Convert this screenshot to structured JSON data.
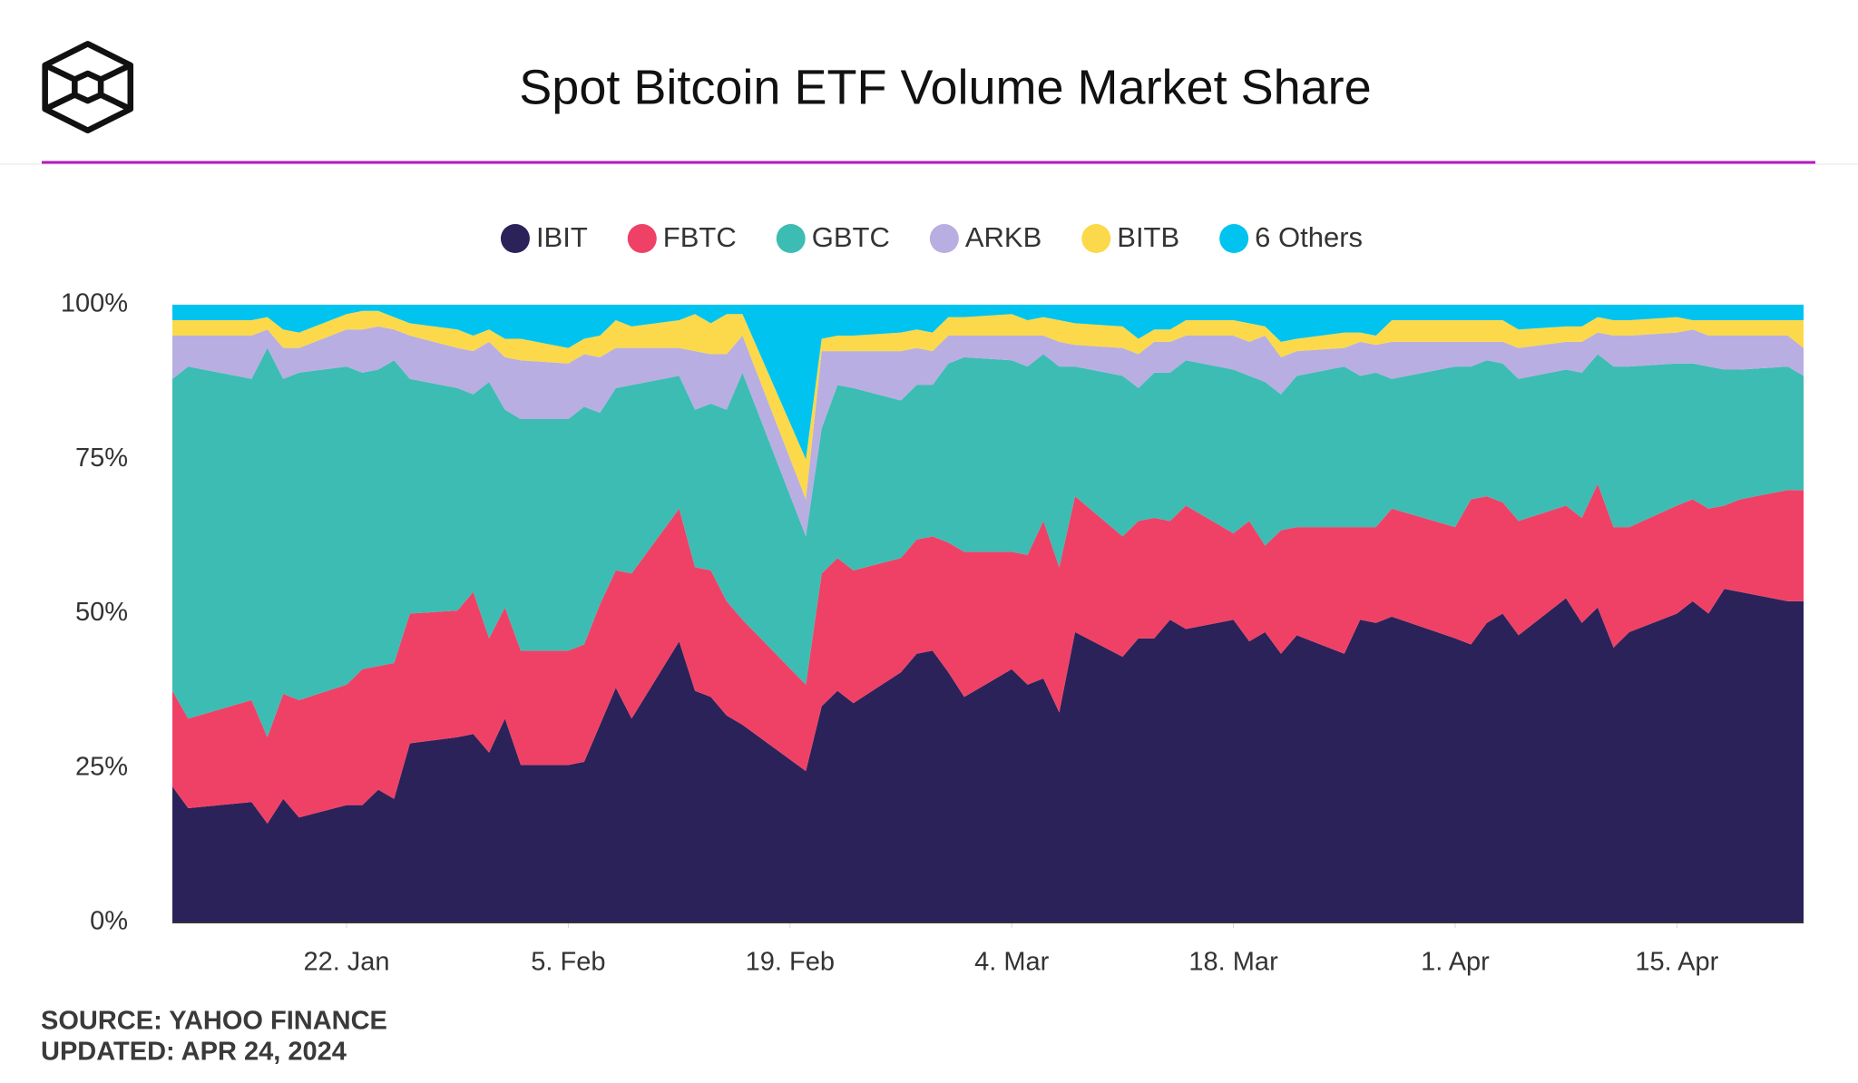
{
  "chart_data": {
    "type": "stacked-area",
    "title": "Spot Bitcoin ETF Volume Market Share",
    "source": "SOURCE: YAHOO FINANCE",
    "updated": "UPDATED: APR 24, 2024",
    "x": [
      "01-11",
      "01-12",
      "01-16",
      "01-17",
      "01-18",
      "01-19",
      "01-22",
      "01-23",
      "01-24",
      "01-25",
      "01-26",
      "01-29",
      "01-30",
      "01-31",
      "02-01",
      "02-02",
      "02-05",
      "02-06",
      "02-07",
      "02-08",
      "02-09",
      "02-12",
      "02-13",
      "02-14",
      "02-15",
      "02-16",
      "02-20",
      "02-21",
      "02-22",
      "02-23",
      "02-26",
      "02-27",
      "02-28",
      "02-29",
      "03-01",
      "03-04",
      "03-05",
      "03-06",
      "03-07",
      "03-08",
      "03-11",
      "03-12",
      "03-13",
      "03-14",
      "03-15",
      "03-18",
      "03-19",
      "03-20",
      "03-21",
      "03-22",
      "03-25",
      "03-26",
      "03-27",
      "03-28",
      "04-01",
      "04-02",
      "04-03",
      "04-04",
      "04-05",
      "04-08",
      "04-09",
      "04-10",
      "04-11",
      "04-12",
      "04-15",
      "04-16",
      "04-17",
      "04-18",
      "04-19",
      "04-22",
      "04-23"
    ],
    "xlim": [
      "01-11",
      "04-23"
    ],
    "xticks": [
      {
        "value": "01-22",
        "label": "22. Jan"
      },
      {
        "value": "02-05",
        "label": "5. Feb"
      },
      {
        "value": "02-19",
        "label": "19. Feb"
      },
      {
        "value": "03-04",
        "label": "4. Mar"
      },
      {
        "value": "03-18",
        "label": "18. Mar"
      },
      {
        "value": "04-01",
        "label": "1. Apr"
      },
      {
        "value": "04-15",
        "label": "15. Apr"
      }
    ],
    "ylim": [
      0,
      100
    ],
    "yticks": [
      {
        "value": 0,
        "label": "0%"
      },
      {
        "value": 25,
        "label": "25%"
      },
      {
        "value": 50,
        "label": "50%"
      },
      {
        "value": 75,
        "label": "75%"
      },
      {
        "value": 100,
        "label": "100%"
      }
    ],
    "stacked": true,
    "legend": "top",
    "series": [
      {
        "name": "IBIT",
        "color": "#2b2259",
        "values": [
          22,
          18.5,
          19.5,
          16,
          20,
          17,
          19,
          19,
          21.5,
          20,
          29,
          30,
          30.5,
          27.5,
          33,
          25.5,
          25.5,
          26,
          32,
          38,
          33,
          45.5,
          37.5,
          36.5,
          33.5,
          32,
          24.5,
          35,
          37.5,
          35.5,
          40.5,
          43.5,
          44,
          40.5,
          36.5,
          41,
          38.5,
          39.5,
          34,
          47,
          43,
          46,
          46,
          49,
          47.5,
          49,
          45.5,
          47,
          43.5,
          46.5,
          43.5,
          49,
          48.5,
          49.5,
          46,
          45,
          48.5,
          50,
          46.5,
          52.5,
          48.5,
          51,
          44.5,
          47,
          50,
          52,
          50,
          54,
          53.5,
          52,
          52
        ]
      },
      {
        "name": "FBTC",
        "color": "#ef4166",
        "values": [
          15.5,
          14.5,
          16.5,
          14,
          17,
          19,
          19.5,
          22,
          20,
          22,
          21,
          20.5,
          23,
          18.5,
          18,
          18.5,
          18.5,
          19,
          19.5,
          19,
          23.5,
          21.5,
          20,
          20.5,
          18.5,
          17,
          14,
          21.5,
          21.5,
          21.5,
          18.5,
          18.5,
          18.5,
          21,
          23.5,
          19,
          21,
          25.5,
          23.5,
          22,
          19.5,
          19,
          19.5,
          16,
          20,
          14,
          19.5,
          14,
          20,
          17.5,
          20.5,
          15,
          15.5,
          17.5,
          18,
          23.5,
          20.5,
          18,
          18.5,
          15,
          17,
          20,
          19.5,
          17,
          17.5,
          16.5,
          17,
          13.5,
          15,
          18,
          18
        ]
      },
      {
        "name": "GBTC",
        "color": "#3dbcb3",
        "values": [
          50.5,
          57,
          52,
          63,
          51,
          53,
          51.5,
          48,
          48,
          49,
          38,
          36,
          32,
          41.5,
          32,
          37.5,
          37.5,
          38.5,
          31,
          29.5,
          30.5,
          21.5,
          25.5,
          27,
          31,
          40,
          24,
          23.5,
          28,
          29.5,
          25.5,
          25,
          24.5,
          29,
          31.5,
          31,
          30.5,
          27,
          32.5,
          21,
          26,
          21.5,
          23.5,
          24,
          23.5,
          26.5,
          23.5,
          26.5,
          22,
          24.5,
          26,
          24.5,
          25,
          21,
          26,
          21.5,
          22,
          22.5,
          23,
          22,
          23.5,
          21,
          26,
          26,
          23,
          22,
          23,
          22,
          21,
          20,
          18.5
        ]
      },
      {
        "name": "ARKB",
        "color": "#b8aee1",
        "values": [
          7,
          5,
          7,
          3,
          5,
          4,
          6,
          7,
          7,
          5,
          7,
          6.5,
          7,
          6.5,
          8.5,
          9.5,
          9,
          8.5,
          9,
          6.5,
          6,
          4.5,
          9.5,
          8,
          9,
          6,
          6,
          12.5,
          5.5,
          6,
          8,
          6,
          5.5,
          4.5,
          3.5,
          4,
          5,
          3,
          4,
          3.5,
          4.5,
          5.5,
          5,
          5,
          4,
          5.5,
          5.5,
          7.5,
          6,
          4,
          3,
          5.5,
          4.5,
          6,
          4,
          4,
          3,
          3.5,
          5,
          4.5,
          5,
          3.5,
          5,
          5,
          5,
          5.5,
          5,
          5.5,
          5.5,
          5,
          4.5
        ]
      },
      {
        "name": "BITB",
        "color": "#fbd94b",
        "values": [
          2.5,
          2.5,
          2.5,
          2,
          3,
          2.5,
          2.5,
          3,
          2.5,
          2,
          2,
          3,
          2.5,
          2,
          3,
          3.5,
          2.5,
          2.5,
          3.5,
          4.5,
          3.5,
          4.5,
          6,
          5,
          6.5,
          3.5,
          6.5,
          2,
          2.5,
          2.5,
          3,
          3,
          3,
          3,
          3,
          3.5,
          2.5,
          3,
          3.5,
          3.5,
          3.5,
          2.5,
          2,
          2,
          2.5,
          2.5,
          3,
          1.5,
          2.5,
          2,
          2.5,
          1.5,
          1.5,
          3.5,
          3.5,
          3.5,
          3.5,
          3.5,
          3,
          2.5,
          2.5,
          2.5,
          2.5,
          2.5,
          2.5,
          1.5,
          2.5,
          2.5,
          2.5,
          2.5,
          4.5
        ]
      },
      {
        "name": "6 Others",
        "color": "#00c3ef",
        "values": [
          2.5,
          2.5,
          2.5,
          2,
          4,
          4.5,
          1.5,
          1,
          1,
          2,
          3,
          4,
          5,
          4,
          5.5,
          5.5,
          7,
          5.5,
          5,
          2.5,
          3.5,
          2.5,
          1.5,
          3,
          1.5,
          1.5,
          25,
          5.5,
          5,
          5,
          4.5,
          4,
          4.5,
          2,
          2,
          1.5,
          2.5,
          2,
          2.5,
          3,
          3.5,
          5.5,
          4,
          4,
          2.5,
          2.5,
          3,
          3.5,
          6,
          5.5,
          4.5,
          4.5,
          5,
          2.5,
          2.5,
          2.5,
          2.5,
          2.5,
          4,
          3.5,
          3.5,
          2,
          2.5,
          2.5,
          2,
          2.5,
          2.5,
          2.5,
          2.5,
          2.5,
          2.5
        ]
      }
    ]
  }
}
